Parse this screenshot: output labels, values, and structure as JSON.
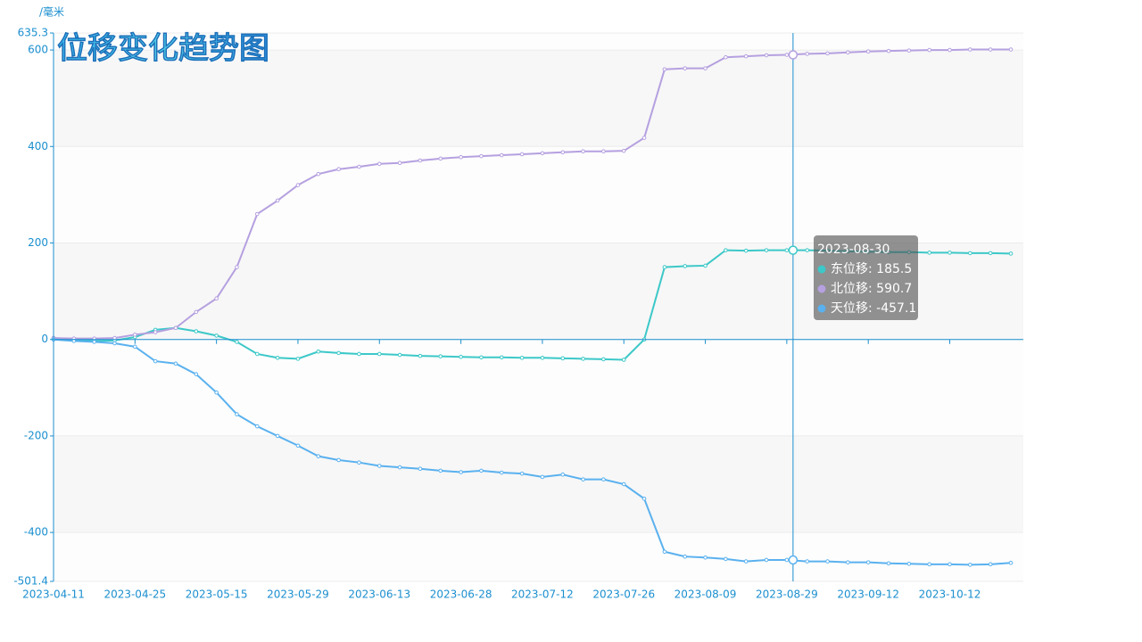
{
  "chart_data": {
    "type": "line",
    "title": "位移变化趋势图",
    "y_axis_label": "/毫米",
    "categories": [
      "2023-04-11",
      null,
      null,
      null,
      "2023-04-25",
      null,
      null,
      null,
      "2023-05-15",
      null,
      null,
      null,
      "2023-05-29",
      null,
      null,
      null,
      "2023-06-13",
      null,
      null,
      null,
      "2023-06-28",
      null,
      null,
      null,
      "2023-07-12",
      null,
      null,
      null,
      "2023-07-26",
      null,
      null,
      null,
      "2023-08-09",
      null,
      null,
      null,
      "2023-08-29",
      null,
      null,
      null,
      "2023-09-12",
      null,
      null,
      null,
      "2023-10-12",
      null,
      null,
      null
    ],
    "series": [
      {
        "name": "东位移",
        "color": "#3cc8c8",
        "values": [
          3,
          0,
          -3,
          -2,
          5,
          20,
          24,
          17,
          8,
          -5,
          -30,
          -38,
          -40,
          -25,
          -28,
          -30,
          -30,
          -32,
          -34,
          -35,
          -36,
          -37,
          -37,
          -38,
          -38,
          -39,
          -40,
          -41,
          -42,
          0,
          150,
          152,
          153,
          185,
          184,
          185,
          185,
          185,
          184,
          183,
          182,
          181,
          181,
          180,
          180,
          179,
          179,
          178
        ]
      },
      {
        "name": "北位移",
        "color": "#b5a0e0",
        "values": [
          3,
          2,
          2,
          3,
          10,
          15,
          24,
          57,
          85,
          150,
          260,
          288,
          320,
          343,
          353,
          358,
          364,
          366,
          371,
          375,
          378,
          380,
          382,
          384,
          386,
          388,
          390,
          390,
          391,
          418,
          560,
          562,
          562,
          585,
          587,
          589,
          590,
          592,
          593,
          595,
          597,
          598,
          599,
          600,
          600,
          601,
          601,
          601
        ]
      },
      {
        "name": "天位移",
        "color": "#5ab1ef",
        "values": [
          0,
          -3,
          -5,
          -8,
          -15,
          -45,
          -50,
          -72,
          -110,
          -155,
          -180,
          -200,
          -220,
          -242,
          -250,
          -255,
          -262,
          -265,
          -268,
          -272,
          -275,
          -272,
          -276,
          -278,
          -285,
          -280,
          -290,
          -290,
          -300,
          -330,
          -440,
          -450,
          -452,
          -455,
          -460,
          -457,
          -457,
          -460,
          -460,
          -462,
          -462,
          -464,
          -465,
          -466,
          -466,
          -467,
          -466,
          -463
        ]
      }
    ],
    "ylim": [
      -501.4,
      635.3
    ],
    "yticks": [
      -501.4,
      -400,
      -200,
      0,
      200,
      400,
      600,
      635.3
    ],
    "grid": true,
    "tooltip": {
      "title": "2023-08-30",
      "items": [
        "东位移: 185.5",
        "北位移: 590.7",
        "天位移: -457.1"
      ]
    }
  }
}
